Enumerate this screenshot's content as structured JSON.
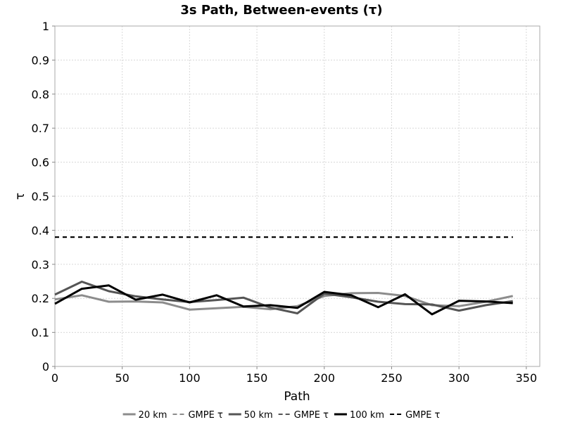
{
  "chart_data": {
    "type": "line",
    "title": "3s Path, Between-events (τ)",
    "xlabel": "Path",
    "ylabel": "τ",
    "xlim": [
      0,
      360
    ],
    "ylim": [
      0,
      1
    ],
    "xticks": [
      "0",
      "50",
      "100",
      "150",
      "200",
      "250",
      "300",
      "350"
    ],
    "yticks": [
      "0",
      "0.1",
      "0.2",
      "0.3",
      "0.4",
      "0.5",
      "0.6",
      "0.7",
      "0.8",
      "0.9",
      "1"
    ],
    "grid": true,
    "legend_position": "bottom",
    "series": [
      {
        "name": "20 km",
        "color": "#8c8c8c",
        "dash": "solid",
        "x": [
          0,
          20,
          40,
          60,
          80,
          100,
          120,
          140,
          160,
          180,
          200,
          220,
          240,
          260,
          280,
          300,
          320,
          340
        ],
        "y": [
          0.197,
          0.209,
          0.19,
          0.191,
          0.188,
          0.167,
          0.171,
          0.175,
          0.168,
          0.177,
          0.207,
          0.215,
          0.216,
          0.207,
          0.18,
          0.177,
          0.19,
          0.207
        ]
      },
      {
        "name": "GMPE τ",
        "color": "#8c8c8c",
        "dash": "dashed",
        "x": [
          0,
          340
        ],
        "y": [
          0.38,
          0.38
        ]
      },
      {
        "name": "50 km",
        "color": "#555555",
        "dash": "solid",
        "x": [
          0,
          20,
          40,
          60,
          80,
          100,
          120,
          140,
          160,
          180,
          200,
          220,
          240,
          260,
          280,
          300,
          320,
          340
        ],
        "y": [
          0.211,
          0.249,
          0.221,
          0.206,
          0.197,
          0.189,
          0.195,
          0.202,
          0.173,
          0.156,
          0.214,
          0.203,
          0.19,
          0.183,
          0.182,
          0.164,
          0.18,
          0.192
        ]
      },
      {
        "name": "GMPE τ",
        "color": "#555555",
        "dash": "dashed",
        "x": [
          0,
          340
        ],
        "y": [
          0.38,
          0.38
        ]
      },
      {
        "name": "100 km",
        "color": "#000000",
        "dash": "solid",
        "x": [
          0,
          20,
          40,
          60,
          80,
          100,
          120,
          140,
          160,
          180,
          200,
          220,
          240,
          260,
          280,
          300,
          320,
          340
        ],
        "y": [
          0.184,
          0.228,
          0.238,
          0.196,
          0.211,
          0.188,
          0.209,
          0.176,
          0.18,
          0.172,
          0.219,
          0.209,
          0.174,
          0.212,
          0.153,
          0.193,
          0.191,
          0.186
        ]
      },
      {
        "name": "GMPE τ",
        "color": "#000000",
        "dash": "dashed",
        "x": [
          0,
          340
        ],
        "y": [
          0.38,
          0.38
        ]
      }
    ]
  }
}
